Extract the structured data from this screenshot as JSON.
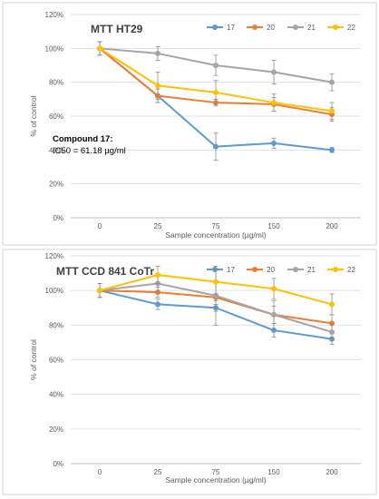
{
  "chart_data": [
    {
      "type": "line",
      "title": "MTT HT29",
      "xlabel": "Sample concentration (µg/ml)",
      "ylabel": "% of control",
      "categories": [
        "0",
        "25",
        "75",
        "150",
        "200"
      ],
      "y_ticks": [
        "0%",
        "20%",
        "40%",
        "60%",
        "80%",
        "100%",
        "120%"
      ],
      "ylim": [
        0,
        120
      ],
      "grid": true,
      "legend": "top-right",
      "annotation": {
        "line1": "Compound 17:",
        "line2": "IC50 = 61.18 µg/ml"
      },
      "series": [
        {
          "name": "17",
          "color": "#5B9BD5",
          "values": [
            100,
            72,
            42,
            44,
            40
          ],
          "errors": [
            4,
            4,
            8,
            3,
            1.5
          ]
        },
        {
          "name": "20",
          "color": "#ED7D31",
          "values": [
            100,
            72,
            68,
            67,
            61
          ],
          "errors": [
            4,
            4,
            2,
            4,
            4
          ]
        },
        {
          "name": "21",
          "color": "#A5A5A5",
          "values": [
            100,
            97,
            90,
            86,
            80
          ],
          "errors": [
            4,
            4,
            6,
            7,
            5
          ]
        },
        {
          "name": "22",
          "color": "#FFC000",
          "values": [
            100,
            78,
            74,
            68,
            63
          ],
          "errors": [
            4,
            8,
            7,
            5,
            5
          ]
        }
      ]
    },
    {
      "type": "line",
      "title": "MTT CCD 841 CoTr",
      "xlabel": "Sample concentration (µg/ml)",
      "ylabel": "% of control",
      "categories": [
        "0",
        "25",
        "75",
        "150",
        "200"
      ],
      "y_ticks": [
        "0%",
        "20%",
        "40%",
        "60%",
        "80%",
        "100%",
        "120%"
      ],
      "ylim": [
        0,
        120
      ],
      "grid": true,
      "legend": "top-right",
      "series": [
        {
          "name": "17",
          "color": "#5B9BD5",
          "values": [
            100,
            92,
            90,
            77,
            72
          ],
          "errors": [
            4,
            3,
            2,
            4,
            3
          ]
        },
        {
          "name": "20",
          "color": "#ED7D31",
          "values": [
            100,
            99,
            96,
            86,
            81
          ],
          "errors": [
            4,
            3,
            2,
            5,
            5
          ]
        },
        {
          "name": "21",
          "color": "#A5A5A5",
          "values": [
            100,
            104,
            97,
            86,
            76
          ],
          "errors": [
            4,
            5,
            17,
            8,
            5
          ]
        },
        {
          "name": "22",
          "color": "#FFC000",
          "values": [
            100,
            109,
            105,
            101,
            92
          ],
          "errors": [
            4,
            5,
            7,
            6,
            6
          ]
        }
      ]
    }
  ]
}
